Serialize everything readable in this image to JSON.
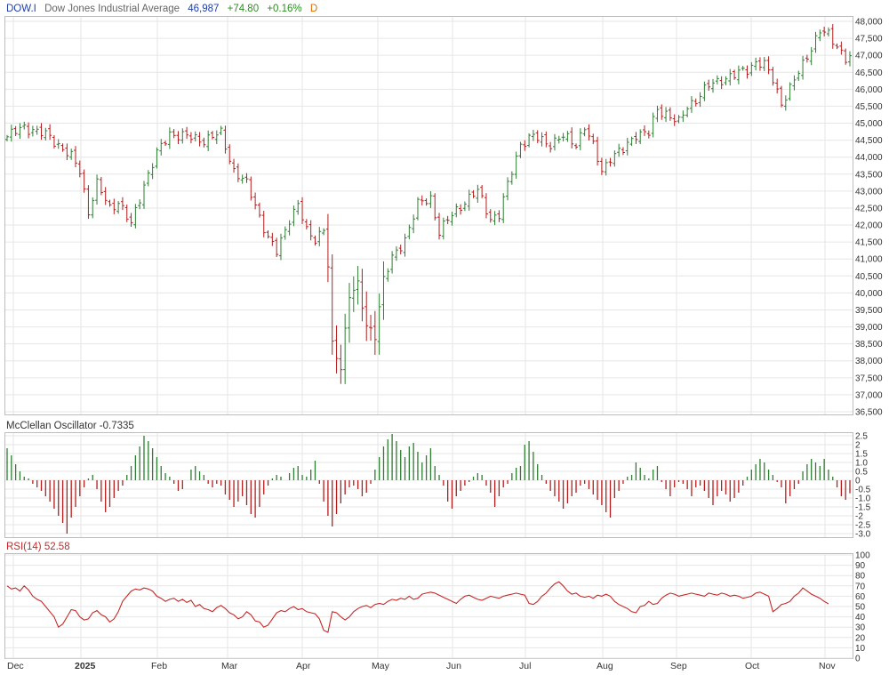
{
  "header": {
    "symbol": "DOW.I",
    "name": "Dow Jones Industrial Average",
    "last": "46,987",
    "change": "+74.80",
    "change_pct": "+0.16%",
    "period": "D"
  },
  "colors": {
    "up": "#2e7d32",
    "down": "#b71c1c",
    "symbol_text": "#1f3fa8",
    "name_text": "#666666",
    "change_text": "#2e8b22",
    "period_text": "#e06a00",
    "rsi_line": "#c62828",
    "grid": "#e6e6e6",
    "border": "#bdbdbd"
  },
  "panels": {
    "mcclellan_label": "McClellan Oscillator -0.7335",
    "rsi_label": "RSI(14) 52.58"
  },
  "chart_data": [
    {
      "type": "ohlc",
      "series_name": "Dow Jones Industrial Average",
      "x_tick_labels": [
        "Dec",
        "2025",
        "Feb",
        "Mar",
        "Apr",
        "May",
        "Jun",
        "Jul",
        "Aug",
        "Sep",
        "Oct",
        "Nov"
      ],
      "y_tick_labels": [
        "48,000",
        "47,500",
        "47,000",
        "46,500",
        "46,000",
        "45,500",
        "45,000",
        "44,500",
        "44,000",
        "43,500",
        "43,000",
        "42,500",
        "42,000",
        "41,500",
        "41,000",
        "40,500",
        "40,000",
        "39,500",
        "39,000",
        "38,500",
        "38,000",
        "37,500",
        "37,000",
        "36,500"
      ],
      "ylim": [
        36500,
        48000
      ],
      "anchors": [
        [
          0,
          44600
        ],
        [
          4,
          44900
        ],
        [
          10,
          44600
        ],
        [
          15,
          44000
        ],
        [
          17,
          43600
        ],
        [
          19,
          42400
        ],
        [
          21,
          43200
        ],
        [
          24,
          42500
        ],
        [
          26,
          42700
        ],
        [
          29,
          42000
        ],
        [
          32,
          43200
        ],
        [
          35,
          44100
        ],
        [
          38,
          44700
        ],
        [
          42,
          44600
        ],
        [
          46,
          44500
        ],
        [
          50,
          44700
        ],
        [
          53,
          43600
        ],
        [
          56,
          43200
        ],
        [
          58,
          42600
        ],
        [
          61,
          41600
        ],
        [
          63,
          41200
        ],
        [
          66,
          42200
        ],
        [
          68,
          42600
        ],
        [
          70,
          41800
        ],
        [
          72,
          41600
        ],
        [
          74,
          41900
        ],
        [
          75,
          40800
        ],
        [
          76,
          38400
        ],
        [
          78,
          37800
        ],
        [
          80,
          40000
        ],
        [
          82,
          40200
        ],
        [
          84,
          39000
        ],
        [
          86,
          38800
        ],
        [
          88,
          40400
        ],
        [
          90,
          41000
        ],
        [
          93,
          41600
        ],
        [
          96,
          42600
        ],
        [
          99,
          42800
        ],
        [
          101,
          41800
        ],
        [
          104,
          42300
        ],
        [
          107,
          42700
        ],
        [
          110,
          43000
        ],
        [
          113,
          42200
        ],
        [
          115,
          42300
        ],
        [
          118,
          43600
        ],
        [
          120,
          44400
        ],
        [
          123,
          44600
        ],
        [
          127,
          44400
        ],
        [
          130,
          44600
        ],
        [
          133,
          44400
        ],
        [
          135,
          44900
        ],
        [
          137,
          44300
        ],
        [
          139,
          43600
        ],
        [
          141,
          44000
        ],
        [
          144,
          44200
        ],
        [
          147,
          44700
        ],
        [
          150,
          44700
        ],
        [
          152,
          45400
        ],
        [
          154,
          45300
        ],
        [
          157,
          45000
        ],
        [
          159,
          45500
        ],
        [
          161,
          45700
        ],
        [
          164,
          46100
        ],
        [
          167,
          46300
        ],
        [
          170,
          46400
        ],
        [
          173,
          46600
        ],
        [
          175,
          46800
        ],
        [
          177,
          46700
        ],
        [
          179,
          46300
        ],
        [
          181,
          45600
        ],
        [
          183,
          46000
        ],
        [
          185,
          46500
        ],
        [
          187,
          47000
        ],
        [
          190,
          47700
        ],
        [
          192,
          47600
        ],
        [
          194,
          47300
        ],
        [
          196,
          46900
        ],
        [
          197,
          46987
        ]
      ]
    },
    {
      "type": "bar",
      "series_name": "McClellan Oscillator",
      "y_tick_labels": [
        "2.5",
        "2",
        "1.5",
        "1.0",
        "0.5",
        "0",
        "-0.5",
        "-1.0",
        "-1.5",
        "-2",
        "-2.5",
        "-3.0"
      ],
      "ylim": [
        -3.0,
        2.5
      ],
      "values": [
        1.8,
        1.4,
        0.9,
        0.5,
        0.2,
        0.1,
        -0.2,
        -0.4,
        -0.6,
        -0.9,
        -1.2,
        -1.6,
        -2.0,
        -2.4,
        -3.0,
        -2.1,
        -1.5,
        -0.9,
        -0.4,
        0.1,
        0.3,
        -0.5,
        -1.2,
        -1.8,
        -1.5,
        -1.0,
        -0.6,
        -0.3,
        0.3,
        0.8,
        1.4,
        1.9,
        2.5,
        2.2,
        1.8,
        1.3,
        0.8,
        0.4,
        0.2,
        -0.2,
        -0.6,
        -0.5,
        0.0,
        0.6,
        0.8,
        0.5,
        0.3,
        -0.2,
        -0.4,
        -0.2,
        -0.3,
        -0.8,
        -1.1,
        -1.5,
        -1.2,
        -0.9,
        -1.4,
        -1.9,
        -2.1,
        -1.5,
        -0.8,
        -0.3,
        0.1,
        0.3,
        0.2,
        0.0,
        0.4,
        0.7,
        0.8,
        0.3,
        0.2,
        0.6,
        1.1,
        -0.2,
        -1.2,
        -2.0,
        -2.6,
        -1.9,
        -1.3,
        -0.8,
        -0.4,
        -0.3,
        -0.5,
        -0.9,
        -0.7,
        -0.2,
        0.6,
        1.3,
        1.9,
        2.3,
        2.6,
        2.2,
        1.7,
        1.3,
        1.9,
        2.1,
        1.6,
        1.0,
        1.4,
        1.8,
        0.8,
        0.3,
        -0.3,
        -1.2,
        -1.6,
        -0.9,
        -0.6,
        -0.3,
        -0.1,
        0.2,
        0.4,
        0.3,
        -0.3,
        -0.7,
        -1.5,
        -0.9,
        -0.4,
        -0.2,
        0.4,
        0.7,
        0.8,
        2.0,
        2.2,
        1.6,
        0.9,
        0.3,
        -0.2,
        -0.6,
        -0.9,
        -1.2,
        -1.6,
        -1.3,
        -0.9,
        -0.7,
        -0.3,
        -0.2,
        -0.5,
        -0.8,
        -1.1,
        -1.4,
        -1.8,
        -2.1,
        -1.0,
        -0.6,
        -0.2,
        0.2,
        0.3,
        1.0,
        0.7,
        0.3,
        0.1,
        0.6,
        0.8,
        -0.1,
        -0.5,
        -0.9,
        -0.4,
        -0.1,
        -0.2,
        -0.5,
        -0.9,
        -0.4,
        -0.3,
        -0.6,
        -1.0,
        -1.4,
        -0.9,
        -0.6,
        -0.8,
        -1.2,
        -1.0,
        -0.7,
        -0.3,
        0.2,
        0.6,
        0.9,
        1.2,
        1.0,
        0.6,
        0.3,
        -0.1,
        -0.4,
        -1.3,
        -0.9,
        -0.5,
        -0.2,
        0.5,
        0.9,
        1.2,
        1.0,
        0.8,
        1.2,
        0.6,
        0.2,
        -0.4,
        -0.9,
        -1.1,
        -0.7335
      ]
    },
    {
      "type": "line",
      "series_name": "RSI(14)",
      "y_tick_labels": [
        "100",
        "90",
        "80",
        "70",
        "60",
        "50",
        "40",
        "30",
        "20",
        "10",
        "0"
      ],
      "ylim": [
        0,
        100
      ],
      "values": [
        70,
        67,
        68,
        65,
        70,
        66,
        60,
        57,
        55,
        50,
        45,
        40,
        30,
        33,
        40,
        47,
        46,
        40,
        37,
        38,
        44,
        46,
        42,
        40,
        35,
        38,
        45,
        55,
        60,
        65,
        67,
        66,
        68,
        67,
        65,
        60,
        58,
        55,
        57,
        58,
        55,
        57,
        54,
        56,
        50,
        52,
        48,
        47,
        45,
        49,
        51,
        48,
        44,
        42,
        38,
        40,
        45,
        42,
        36,
        35,
        30,
        32,
        38,
        44,
        46,
        45,
        48,
        50,
        47,
        48,
        45,
        44,
        43,
        38,
        27,
        25,
        45,
        44,
        40,
        37,
        40,
        45,
        48,
        50,
        51,
        49,
        52,
        53,
        52,
        55,
        57,
        56,
        58,
        57,
        60,
        57,
        58,
        62,
        63,
        64,
        63,
        61,
        59,
        57,
        55,
        53,
        57,
        60,
        61,
        59,
        57,
        56,
        58,
        60,
        59,
        58,
        60,
        61,
        62,
        63,
        62,
        61,
        53,
        52,
        55,
        60,
        63,
        68,
        72,
        74,
        70,
        65,
        62,
        63,
        60,
        59,
        60,
        58,
        61,
        60,
        62,
        60,
        55,
        52,
        50,
        48,
        45,
        44,
        50,
        51,
        55,
        52,
        53,
        58,
        61,
        63,
        62,
        60,
        61,
        62,
        63,
        62,
        61,
        60,
        63,
        62,
        61,
        63,
        62,
        60,
        61,
        60,
        58,
        59,
        60,
        63,
        64,
        62,
        60,
        45,
        48,
        52,
        53,
        55,
        60,
        63,
        68,
        65,
        62,
        60,
        58,
        55,
        52.58
      ]
    }
  ]
}
